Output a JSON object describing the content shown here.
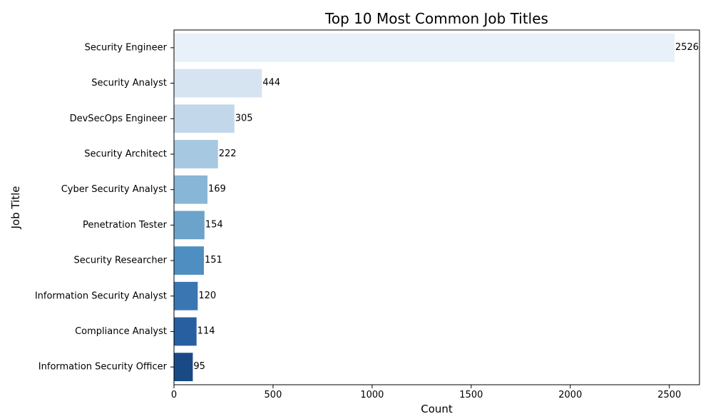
{
  "chart_data": {
    "type": "bar",
    "orientation": "horizontal",
    "title": "Top 10 Most Common Job Titles",
    "xlabel": "Count",
    "ylabel": "Job Title",
    "categories": [
      "Security Engineer",
      "Security Analyst",
      "DevSecOps Engineer",
      "Security Architect",
      "Cyber Security Analyst",
      "Penetration Tester",
      "Security Researcher",
      "Information Security Analyst",
      "Compliance Analyst",
      "Information Security Officer"
    ],
    "values": [
      2526,
      444,
      305,
      222,
      169,
      154,
      151,
      120,
      114,
      95
    ],
    "data_labels": [
      "2526",
      "444",
      "305",
      "222",
      "169",
      "154",
      "151",
      "120",
      "114",
      "95"
    ],
    "xlim": [
      0,
      2652
    ],
    "xticks": [
      0,
      500,
      1000,
      1500,
      2000,
      2500
    ],
    "xtick_labels": [
      "0",
      "500",
      "1000",
      "1500",
      "2000",
      "2500"
    ],
    "grid": false,
    "legend": "none",
    "colors": [
      "#e8f0f9",
      "#d6e4f2",
      "#c2d7ea",
      "#a6c8e0",
      "#88b6d6",
      "#6ca3cb",
      "#4f8ec0",
      "#3a77b2",
      "#285fa0",
      "#1a4a86"
    ]
  }
}
